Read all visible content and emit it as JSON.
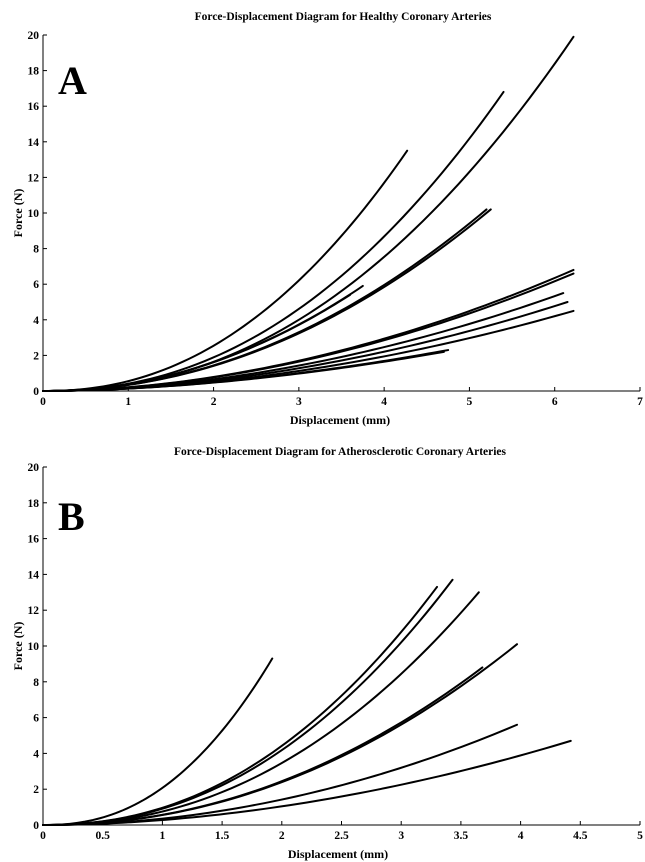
{
  "chart_data": [
    {
      "type": "line",
      "panel_label": "A",
      "title": "Force-Displacement Diagram for Healthy Coronary Arteries",
      "xlabel": "Displacement (mm)",
      "ylabel": "Force (N)",
      "xlim": [
        0,
        7
      ],
      "ylim": [
        0,
        20
      ],
      "xticks": [
        0,
        1,
        2,
        3,
        4,
        5,
        6,
        7
      ],
      "yticks": [
        0,
        2,
        4,
        6,
        8,
        10,
        12,
        14,
        16,
        18,
        20
      ],
      "grid": false,
      "series": [
        {
          "end_x": 4.27,
          "end_y": 13.5,
          "exponent": 2.2
        },
        {
          "end_x": 5.4,
          "end_y": 16.8,
          "exponent": 2.2
        },
        {
          "end_x": 6.22,
          "end_y": 19.9,
          "exponent": 2.2
        },
        {
          "end_x": 5.2,
          "end_y": 10.2,
          "exponent": 2.05
        },
        {
          "end_x": 5.25,
          "end_y": 10.2,
          "exponent": 2.05
        },
        {
          "end_x": 3.75,
          "end_y": 5.9,
          "exponent": 2.05
        },
        {
          "end_x": 3.6,
          "end_y": 5.4,
          "exponent": 2.05
        },
        {
          "end_x": 6.22,
          "end_y": 6.8,
          "exponent": 1.9
        },
        {
          "end_x": 6.22,
          "end_y": 6.6,
          "exponent": 1.9
        },
        {
          "end_x": 6.1,
          "end_y": 5.5,
          "exponent": 1.9
        },
        {
          "end_x": 6.15,
          "end_y": 5.0,
          "exponent": 1.9
        },
        {
          "end_x": 6.22,
          "end_y": 4.5,
          "exponent": 1.9
        },
        {
          "end_x": 4.75,
          "end_y": 2.3,
          "exponent": 1.8
        },
        {
          "end_x": 4.7,
          "end_y": 2.2,
          "exponent": 1.8
        }
      ]
    },
    {
      "type": "line",
      "panel_label": "B",
      "title": "Force-Displacement Diagram for Atherosclerotic Coronary Arteries",
      "xlabel": "Displacement (mm)",
      "ylabel": "Force (N)",
      "xlim": [
        0,
        5
      ],
      "ylim": [
        0,
        20
      ],
      "xticks": [
        0,
        0.5,
        1,
        1.5,
        2,
        2.5,
        3,
        3.5,
        4,
        4.5,
        5
      ],
      "yticks": [
        0,
        2,
        4,
        6,
        8,
        10,
        12,
        14,
        16,
        18,
        20
      ],
      "grid": false,
      "series": [
        {
          "end_x": 1.92,
          "end_y": 9.3,
          "exponent": 2.3
        },
        {
          "end_x": 3.3,
          "end_y": 13.3,
          "exponent": 2.2
        },
        {
          "end_x": 3.43,
          "end_y": 13.7,
          "exponent": 2.2
        },
        {
          "end_x": 3.65,
          "end_y": 13.0,
          "exponent": 2.2
        },
        {
          "end_x": 3.97,
          "end_y": 10.1,
          "exponent": 2.1
        },
        {
          "end_x": 3.68,
          "end_y": 8.8,
          "exponent": 2.1
        },
        {
          "end_x": 3.97,
          "end_y": 5.6,
          "exponent": 2.0
        },
        {
          "end_x": 4.42,
          "end_y": 4.7,
          "exponent": 1.9
        }
      ]
    }
  ]
}
